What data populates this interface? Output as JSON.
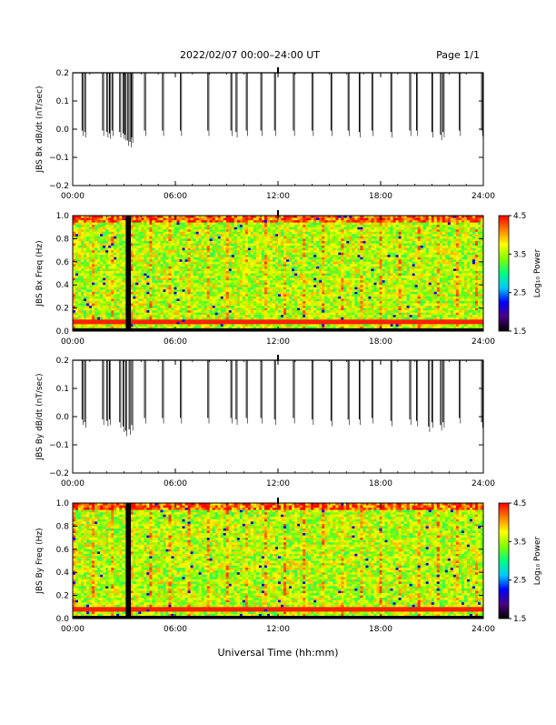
{
  "header": {
    "title": "2022/02/07  00:00–24:00 UT",
    "page": "Page 1/1"
  },
  "xlabel": "Universal Time (hh:mm)",
  "x_ticks": [
    "00:00",
    "06:00",
    "12:00",
    "18:00",
    "24:00"
  ],
  "colorbar": {
    "label": "Log₁₀ Power",
    "ticks": [
      "1.5",
      "2.5",
      "3.5",
      "4.5"
    ],
    "range": [
      1.5,
      4.5
    ],
    "colors": [
      "#000000",
      "#4b0082",
      "#0000ff",
      "#00c8ff",
      "#00ff80",
      "#80ff00",
      "#ffff00",
      "#ff8000",
      "#ff0000"
    ]
  },
  "chart_data": [
    {
      "type": "line",
      "ylabel": "JBS Bx dB/dt (nT/sec)",
      "xlim": [
        0,
        24
      ],
      "ylim": [
        -0.2,
        0.2
      ],
      "y_ticks": [
        "0.2",
        "0.1",
        "0.0",
        "−0.1",
        "−0.2"
      ],
      "baseline": 0.2,
      "spikes": [
        {
          "t": 0.55,
          "v": -0.005
        },
        {
          "t": 0.7,
          "v": -0.01
        },
        {
          "t": 1.75,
          "v": -0.005
        },
        {
          "t": 2.0,
          "v": -0.01
        },
        {
          "t": 2.15,
          "v": -0.015
        },
        {
          "t": 2.3,
          "v": -0.005
        },
        {
          "t": 2.75,
          "v": -0.01
        },
        {
          "t": 2.95,
          "v": -0.015
        },
        {
          "t": 3.05,
          "v": -0.02
        },
        {
          "t": 3.2,
          "v": -0.04
        },
        {
          "t": 3.35,
          "v": -0.045
        },
        {
          "t": 3.45,
          "v": -0.03
        },
        {
          "t": 4.2,
          "v": -0.005
        },
        {
          "t": 5.25,
          "v": -0.005
        },
        {
          "t": 6.3,
          "v": -0.005
        },
        {
          "t": 7.9,
          "v": -0.005
        },
        {
          "t": 9.25,
          "v": -0.005
        },
        {
          "t": 9.55,
          "v": -0.01
        },
        {
          "t": 10.15,
          "v": -0.005
        },
        {
          "t": 11.0,
          "v": -0.005
        },
        {
          "t": 11.8,
          "v": -0.005
        },
        {
          "t": 12.9,
          "v": -0.005
        },
        {
          "t": 14.0,
          "v": -0.005
        },
        {
          "t": 15.1,
          "v": -0.005
        },
        {
          "t": 16.1,
          "v": -0.005
        },
        {
          "t": 16.75,
          "v": -0.01
        },
        {
          "t": 17.5,
          "v": -0.005
        },
        {
          "t": 18.6,
          "v": -0.01
        },
        {
          "t": 19.7,
          "v": -0.005
        },
        {
          "t": 20.1,
          "v": -0.005
        },
        {
          "t": 21.0,
          "v": -0.01
        },
        {
          "t": 21.5,
          "v": -0.02
        },
        {
          "t": 21.65,
          "v": -0.01
        },
        {
          "t": 22.6,
          "v": -0.005
        },
        {
          "t": 23.9,
          "v": -0.005
        }
      ]
    },
    {
      "type": "heatmap",
      "ylabel": "JBS Bx Freq (Hz)",
      "xlim": [
        0,
        24
      ],
      "ylim": [
        0.0,
        1.0
      ],
      "y_ticks": [
        "1.0",
        "0.8",
        "0.6",
        "0.4",
        "0.2",
        "0.0"
      ],
      "gap_hours": [
        3.1,
        3.4
      ],
      "line_freq_hz": 0.08
    },
    {
      "type": "line",
      "ylabel": "JBS By dB/dt (nT/sec)",
      "xlim": [
        0,
        24
      ],
      "ylim": [
        -0.2,
        0.2
      ],
      "y_ticks": [
        "0.2",
        "0.1",
        "0.0",
        "−0.1",
        "−0.2"
      ],
      "baseline": 0.2,
      "spikes": [
        {
          "t": 0.55,
          "v": -0.01
        },
        {
          "t": 0.7,
          "v": -0.02
        },
        {
          "t": 1.75,
          "v": -0.01
        },
        {
          "t": 2.0,
          "v": -0.015
        },
        {
          "t": 2.15,
          "v": -0.01
        },
        {
          "t": 2.75,
          "v": -0.02
        },
        {
          "t": 2.95,
          "v": -0.035
        },
        {
          "t": 3.1,
          "v": -0.05
        },
        {
          "t": 3.3,
          "v": -0.045
        },
        {
          "t": 3.45,
          "v": -0.03
        },
        {
          "t": 4.2,
          "v": -0.005
        },
        {
          "t": 5.25,
          "v": -0.005
        },
        {
          "t": 6.3,
          "v": -0.005
        },
        {
          "t": 7.9,
          "v": -0.005
        },
        {
          "t": 9.25,
          "v": -0.005
        },
        {
          "t": 9.55,
          "v": -0.01
        },
        {
          "t": 10.15,
          "v": -0.005
        },
        {
          "t": 11.0,
          "v": -0.005
        },
        {
          "t": 11.8,
          "v": -0.01
        },
        {
          "t": 12.9,
          "v": -0.005
        },
        {
          "t": 14.0,
          "v": -0.01
        },
        {
          "t": 15.1,
          "v": -0.015
        },
        {
          "t": 16.1,
          "v": -0.01
        },
        {
          "t": 16.75,
          "v": -0.01
        },
        {
          "t": 17.5,
          "v": -0.005
        },
        {
          "t": 18.6,
          "v": -0.015
        },
        {
          "t": 19.7,
          "v": -0.01
        },
        {
          "t": 20.1,
          "v": -0.015
        },
        {
          "t": 20.8,
          "v": -0.035
        },
        {
          "t": 21.0,
          "v": -0.02
        },
        {
          "t": 21.5,
          "v": -0.03
        },
        {
          "t": 21.65,
          "v": -0.02
        },
        {
          "t": 22.6,
          "v": -0.005
        },
        {
          "t": 23.9,
          "v": -0.02
        }
      ]
    },
    {
      "type": "heatmap",
      "ylabel": "JBS By Freq (Hz)",
      "xlim": [
        0,
        24
      ],
      "ylim": [
        0.0,
        1.0
      ],
      "y_ticks": [
        "1.0",
        "0.8",
        "0.6",
        "0.4",
        "0.2",
        "0.0"
      ],
      "gap_hours": [
        3.1,
        3.4
      ],
      "line_freq_hz": 0.08
    }
  ]
}
